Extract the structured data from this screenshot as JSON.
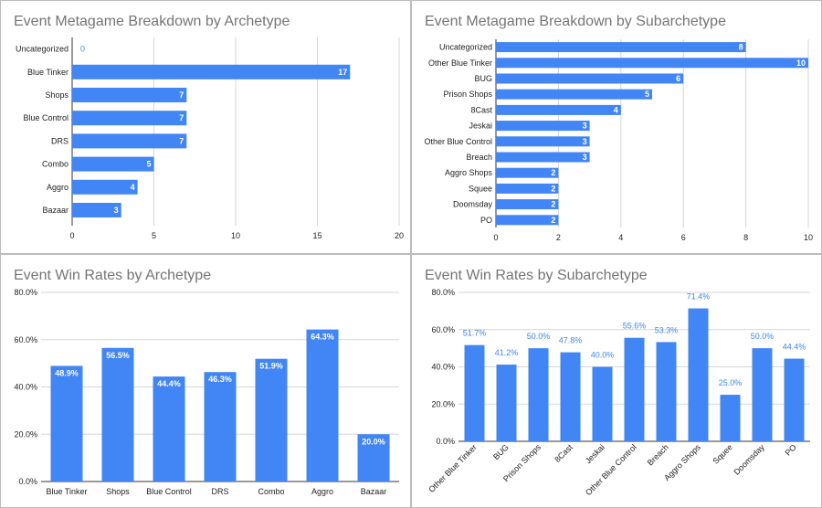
{
  "chart_data": [
    {
      "type": "bar",
      "orientation": "horizontal",
      "title": "Event Metagame Breakdown by Archetype",
      "categories": [
        "Uncategorized",
        "Blue Tinker",
        "Shops",
        "Blue Control",
        "DRS",
        "Combo",
        "Aggro",
        "Bazaar"
      ],
      "values": [
        0,
        17,
        7,
        7,
        7,
        5,
        4,
        3
      ],
      "value_labels": [
        "0",
        "17",
        "7",
        "7",
        "7",
        "5",
        "4",
        "3"
      ],
      "xlim": [
        0,
        20
      ],
      "ticks": [
        "0",
        "5",
        "10",
        "15",
        "20"
      ],
      "grid": true,
      "color": "#4285f4"
    },
    {
      "type": "bar",
      "orientation": "horizontal",
      "title": "Event Metagame Breakdown by Subarchetype",
      "categories": [
        "Uncategorized",
        "Other Blue Tinker",
        "BUG",
        "Prison Shops",
        "8Cast",
        "Jeskai",
        "Other Blue Control",
        "Breach",
        "Aggro Shops",
        "Squee",
        "Doomsday",
        "PO"
      ],
      "values": [
        8,
        10,
        6,
        5,
        4,
        3,
        3,
        3,
        2,
        2,
        2,
        2
      ],
      "value_labels": [
        "8",
        "10",
        "6",
        "5",
        "4",
        "3",
        "3",
        "3",
        "2",
        "2",
        "2",
        "2"
      ],
      "xlim": [
        0,
        10
      ],
      "ticks": [
        "0",
        "2",
        "4",
        "6",
        "8",
        "10"
      ],
      "grid": true,
      "color": "#4285f4"
    },
    {
      "type": "bar",
      "orientation": "vertical",
      "title": "Event Win Rates by Archetype",
      "categories": [
        "Blue Tinker",
        "Shops",
        "Blue Control",
        "DRS",
        "Combo",
        "Aggro",
        "Bazaar"
      ],
      "values": [
        48.9,
        56.5,
        44.4,
        46.3,
        51.9,
        64.3,
        20.0
      ],
      "value_labels": [
        "48.9%",
        "56.5%",
        "44.4%",
        "46.3%",
        "51.9%",
        "64.3%",
        "20.0%"
      ],
      "ylim": [
        0,
        80
      ],
      "ticks": [
        "0.0%",
        "20.0%",
        "40.0%",
        "60.0%",
        "80.0%"
      ],
      "grid": true,
      "color": "#4285f4"
    },
    {
      "type": "bar",
      "orientation": "vertical",
      "title": "Event Win Rates by Subarchetype",
      "categories": [
        "Other Blue Tinker",
        "BUG",
        "Prison Shops",
        "8Cast",
        "Jeskai",
        "Other Blue Control",
        "Breach",
        "Aggro Shops",
        "Squee",
        "Doomsday",
        "PO"
      ],
      "values": [
        51.7,
        41.2,
        50.0,
        47.8,
        40.0,
        55.6,
        53.3,
        71.4,
        25.0,
        50.0,
        44.4
      ],
      "value_labels": [
        "51.7%",
        "41.2%",
        "50.0%",
        "47.8%",
        "40.0%",
        "55.6%",
        "53.3%",
        "71.4%",
        "25.0%",
        "50.0%",
        "44.4%"
      ],
      "ylim": [
        0,
        80
      ],
      "ticks": [
        "0.0%",
        "20.0%",
        "40.0%",
        "60.0%",
        "80.0%"
      ],
      "grid": true,
      "color": "#4285f4"
    }
  ]
}
